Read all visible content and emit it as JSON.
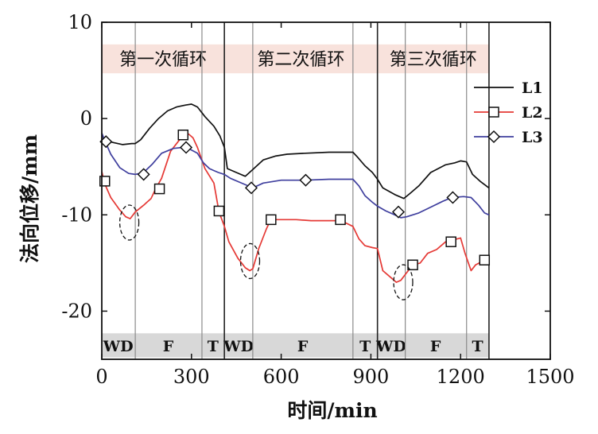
{
  "chart_data": {
    "type": "line",
    "xlabel": "时间/min",
    "ylabel": "法向位移/mm",
    "xlim": [
      0,
      1500
    ],
    "ylim": [
      -25,
      10
    ],
    "xticks": [
      0,
      300,
      600,
      900,
      1200,
      1500
    ],
    "yticks": [
      10,
      0,
      -10,
      -20
    ],
    "grid": false,
    "legend_position": "top-right",
    "cycles": [
      {
        "label": "第一次循环",
        "start": 0,
        "end": 410
      },
      {
        "label": "第二次循环",
        "start": 410,
        "end": 922
      },
      {
        "label": "第三次循环",
        "start": 922,
        "end": 1295
      }
    ],
    "phase_boundaries": [
      0,
      112,
      335,
      410,
      505,
      840,
      922,
      1015,
      1220,
      1295
    ],
    "phases": [
      {
        "label": "WD",
        "x": 55
      },
      {
        "label": "F",
        "x": 222
      },
      {
        "label": "T",
        "x": 372
      },
      {
        "label": "WD",
        "x": 458
      },
      {
        "label": "F",
        "x": 672
      },
      {
        "label": "T",
        "x": 881
      },
      {
        "label": "WD",
        "x": 968
      },
      {
        "label": "F",
        "x": 1116
      },
      {
        "label": "T",
        "x": 1257
      }
    ],
    "series": [
      {
        "name": "L1",
        "color": "#111111",
        "marker": "none",
        "x": [
          0,
          15,
          40,
          70,
          100,
          112,
          130,
          160,
          190,
          220,
          250,
          280,
          300,
          320,
          345,
          375,
          395,
          410,
          420,
          450,
          480,
          505,
          540,
          580,
          620,
          680,
          760,
          840,
          855,
          880,
          905,
          922,
          940,
          980,
          1010,
          1030,
          1060,
          1100,
          1150,
          1180,
          1200,
          1220,
          1240,
          1265,
          1295
        ],
        "y": [
          -1.8,
          -2.3,
          -2.5,
          -2.7,
          -2.6,
          -2.6,
          -2.2,
          -1.0,
          0.0,
          0.8,
          1.2,
          1.4,
          1.5,
          1.2,
          0.2,
          -0.8,
          -1.8,
          -3.0,
          -5.2,
          -5.6,
          -6.0,
          -5.3,
          -4.3,
          -3.9,
          -3.7,
          -3.6,
          -3.5,
          -3.5,
          -4.0,
          -4.9,
          -5.6,
          -6.3,
          -7.2,
          -7.9,
          -8.3,
          -7.8,
          -7.0,
          -5.6,
          -4.8,
          -4.6,
          -4.4,
          -4.5,
          -5.8,
          -6.5,
          -7.2
        ]
      },
      {
        "name": "L2",
        "color": "#e53935",
        "marker": "square",
        "x": [
          0,
          10,
          30,
          60,
          80,
          95,
          112,
          140,
          165,
          180,
          200,
          230,
          260,
          275,
          290,
          305,
          320,
          345,
          375,
          392,
          410,
          425,
          455,
          480,
          495,
          505,
          525,
          550,
          565,
          600,
          650,
          700,
          760,
          800,
          840,
          860,
          880,
          905,
          922,
          940,
          970,
          985,
          1000,
          1015,
          1040,
          1065,
          1090,
          1120,
          1150,
          1175,
          1200,
          1215,
          1235,
          1250,
          1275,
          1295
        ],
        "y": [
          -5.5,
          -6.8,
          -8.2,
          -9.5,
          -10.2,
          -10.4,
          -9.7,
          -9.0,
          -8.3,
          -7.3,
          -6.2,
          -3.4,
          -2.2,
          -1.9,
          -1.6,
          -2.0,
          -3.0,
          -5.2,
          -6.7,
          -9.7,
          -11.2,
          -12.8,
          -14.5,
          -15.5,
          -15.8,
          -15.6,
          -13.5,
          -11.5,
          -10.5,
          -10.5,
          -10.5,
          -10.6,
          -10.6,
          -10.6,
          -11.2,
          -12.5,
          -13.2,
          -13.4,
          -13.5,
          -15.8,
          -16.6,
          -17.0,
          -16.8,
          -16.2,
          -15.2,
          -15.0,
          -14.0,
          -13.6,
          -12.8,
          -12.6,
          -12.4,
          -14.0,
          -15.8,
          -15.2,
          -14.8,
          -14.6
        ]
      },
      {
        "name": "L3",
        "color": "#3f3f9e",
        "marker": "diamond",
        "x": [
          0,
          10,
          30,
          60,
          90,
          112,
          140,
          170,
          200,
          240,
          270,
          290,
          320,
          340,
          360,
          375,
          390,
          410,
          430,
          460,
          490,
          505,
          540,
          600,
          680,
          760,
          840,
          860,
          880,
          905,
          922,
          950,
          980,
          1000,
          1020,
          1060,
          1100,
          1140,
          1170,
          1210,
          1235,
          1260,
          1280,
          1295
        ],
        "y": [
          -1.5,
          -2.3,
          -3.7,
          -5.1,
          -5.7,
          -5.8,
          -5.6,
          -4.7,
          -3.6,
          -3.1,
          -3.0,
          -3.1,
          -3.6,
          -4.6,
          -5.2,
          -5.4,
          -5.6,
          -5.8,
          -6.2,
          -6.6,
          -7.0,
          -7.2,
          -6.7,
          -6.4,
          -6.4,
          -6.3,
          -6.3,
          -7.0,
          -8.0,
          -8.7,
          -9.1,
          -9.6,
          -10.0,
          -10.3,
          -10.2,
          -9.8,
          -9.2,
          -8.6,
          -8.2,
          -8.1,
          -8.2,
          -9.0,
          -9.8,
          -10.0
        ]
      }
    ],
    "markers": {
      "L2": [
        [
          10,
          -6.5
        ],
        [
          193,
          -7.3
        ],
        [
          272,
          -1.7
        ],
        [
          392,
          -9.6
        ],
        [
          566,
          -10.5
        ],
        [
          798,
          -10.5
        ],
        [
          1040,
          -15.2
        ],
        [
          1168,
          -12.8
        ],
        [
          1280,
          -14.7
        ]
      ],
      "L3": [
        [
          14,
          -2.4
        ],
        [
          140,
          -5.8
        ],
        [
          282,
          -3.0
        ],
        [
          500,
          -7.2
        ],
        [
          682,
          -6.4
        ],
        [
          992,
          -9.7
        ],
        [
          1174,
          -8.2
        ]
      ]
    },
    "ellipses": [
      [
        92,
        -10.8
      ],
      [
        496,
        -14.8
      ],
      [
        1008,
        -17.0
      ]
    ]
  }
}
